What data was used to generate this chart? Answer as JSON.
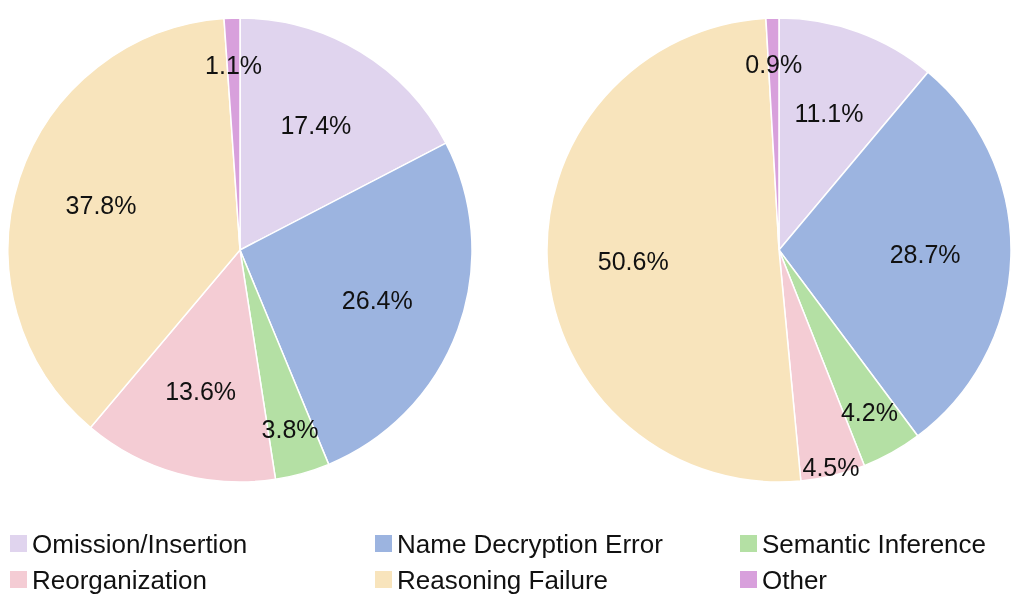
{
  "chart_data": [
    {
      "type": "pie",
      "categories": [
        "Omission/Insertion",
        "Name Decryption Error",
        "Semantic Inference",
        "Reorganization",
        "Reasoning Failure",
        "Other"
      ],
      "values": [
        17.4,
        26.4,
        3.8,
        13.6,
        37.8,
        1.1
      ],
      "value_labels": [
        "17.4%",
        "26.4%",
        "3.8%",
        "13.6%",
        "37.8%",
        "1.1%"
      ],
      "colors": [
        "#e0d4ee",
        "#9cb4e0",
        "#b4e0a4",
        "#f4ccd4",
        "#f8e4bc",
        "#d8a0dc"
      ],
      "legend": "bottom"
    },
    {
      "type": "pie",
      "categories": [
        null,
        null,
        null,
        null,
        null,
        null
      ],
      "values": [
        11.1,
        28.7,
        4.2,
        4.5,
        50.6,
        0.9
      ],
      "value_labels": [
        "11.1%",
        "28.7%",
        "4.2%",
        "4.5%",
        "50.6%",
        "0.9%"
      ],
      "colors": [
        "#e0d4ee",
        "#9cb4e0",
        "#b4e0a4",
        "#f4ccd4",
        "#f8e4bc",
        "#d8a0dc"
      ]
    }
  ]
}
